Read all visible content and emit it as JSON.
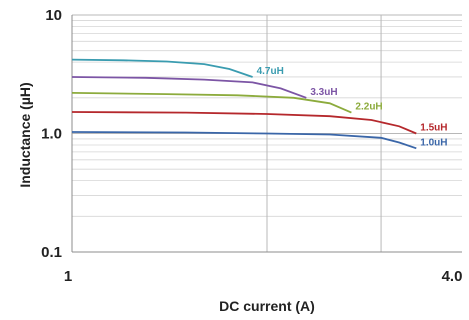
{
  "chart_data": {
    "type": "line",
    "title": "",
    "xlabel": "DC current (A)",
    "ylabel": "Inductance (µH)",
    "x_scale": "log",
    "y_scale": "log",
    "xlim": [
      1,
      4.0
    ],
    "ylim": [
      0.1,
      10
    ],
    "x_tick_labels": [
      "1",
      "4.0"
    ],
    "y_tick_labels": [
      "10",
      "1.0",
      "0.1"
    ],
    "grid": true,
    "legend": "inline labels at curve ends",
    "series": [
      {
        "name": "4.7uH",
        "color": "#3a9cb0",
        "x": [
          1.0,
          1.2,
          1.4,
          1.6,
          1.75,
          1.9
        ],
        "y": [
          4.2,
          4.15,
          4.05,
          3.85,
          3.5,
          3.0
        ]
      },
      {
        "name": "3.3uH",
        "color": "#7c55a5",
        "x": [
          1.0,
          1.3,
          1.6,
          1.9,
          2.1,
          2.3
        ],
        "y": [
          3.0,
          2.95,
          2.85,
          2.7,
          2.4,
          2.0
        ]
      },
      {
        "name": "2.2uH",
        "color": "#8cab3c",
        "x": [
          1.0,
          1.4,
          1.8,
          2.2,
          2.5,
          2.7
        ],
        "y": [
          2.2,
          2.15,
          2.1,
          2.0,
          1.8,
          1.5
        ]
      },
      {
        "name": "1.5uH",
        "color": "#b5282c",
        "x": [
          1.0,
          1.5,
          2.0,
          2.5,
          2.9,
          3.2,
          3.4
        ],
        "y": [
          1.52,
          1.5,
          1.46,
          1.4,
          1.3,
          1.15,
          1.0
        ]
      },
      {
        "name": "1.0uH",
        "color": "#3a66a8",
        "x": [
          1.0,
          1.5,
          2.0,
          2.5,
          3.0,
          3.2,
          3.4
        ],
        "y": [
          1.03,
          1.02,
          1.0,
          0.98,
          0.92,
          0.84,
          0.75
        ]
      }
    ]
  }
}
